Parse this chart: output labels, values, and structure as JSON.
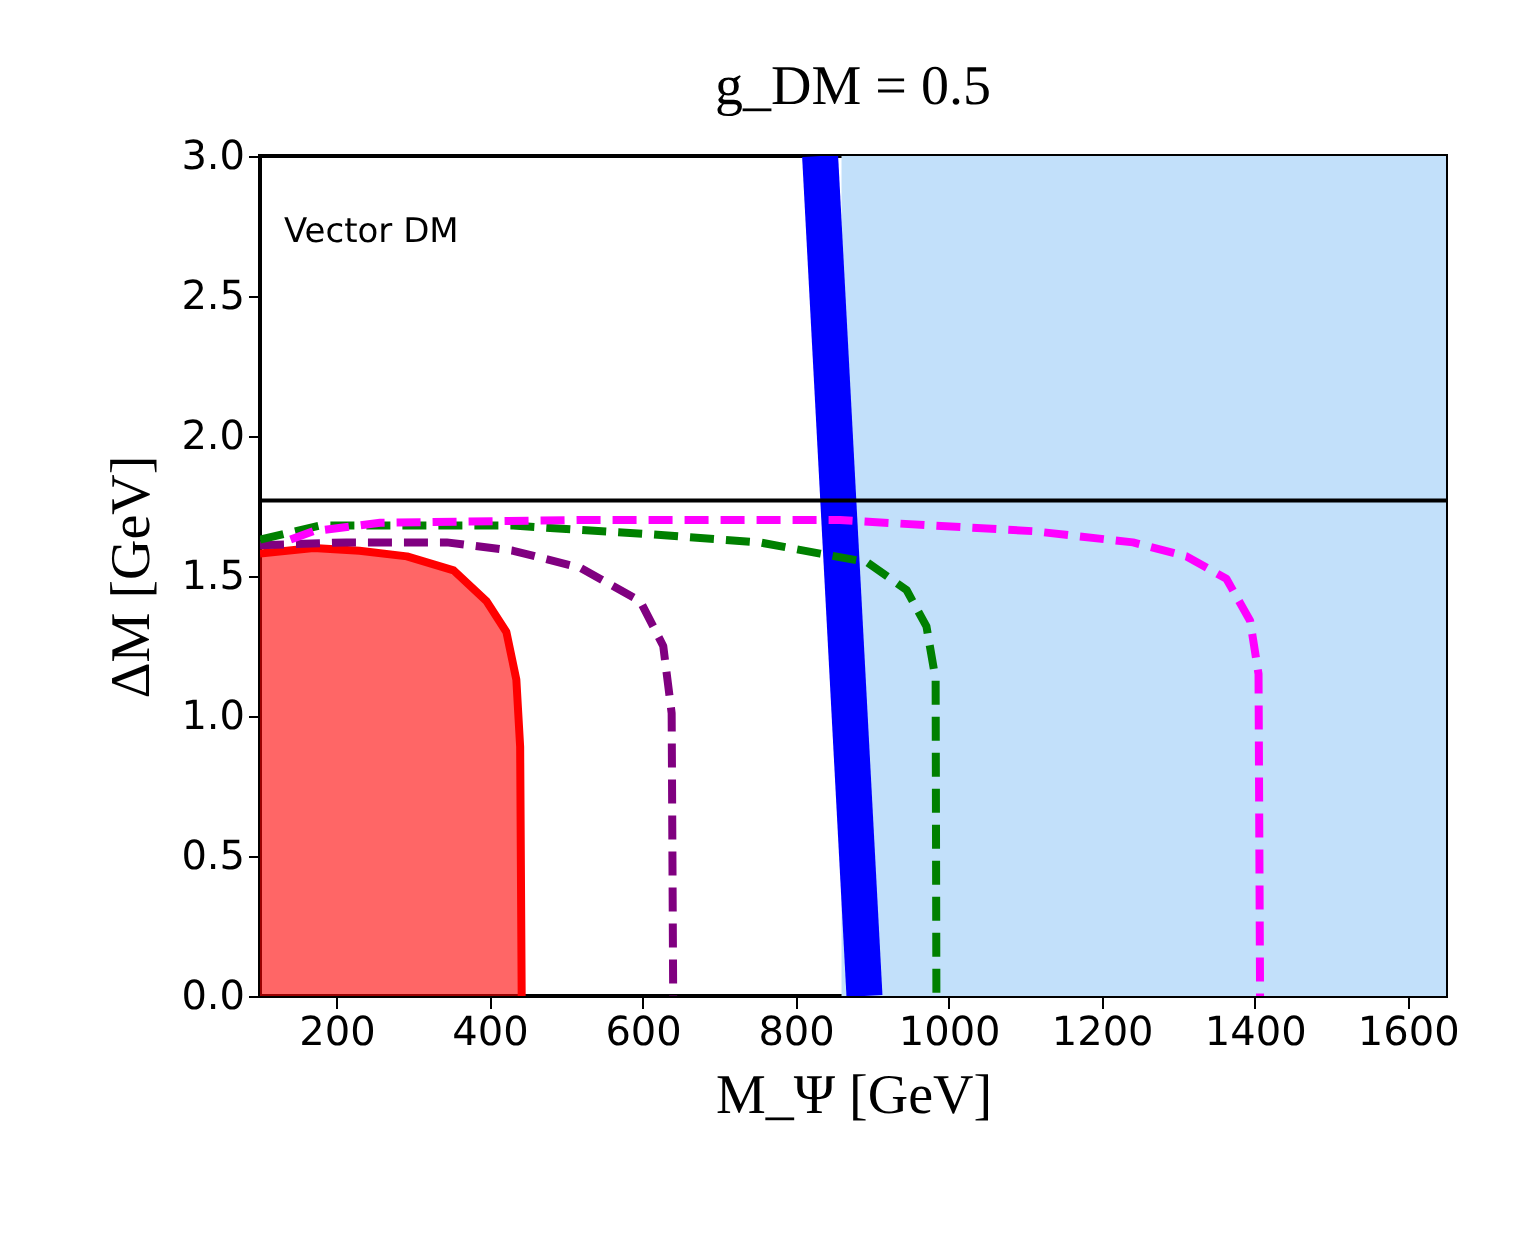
{
  "chart_data": {
    "type": "line",
    "title": "g_DM = 0.5",
    "xlabel": "M_Ψ [GeV]",
    "ylabel": "ΔM [GeV]",
    "annotations": [
      "Vector DM"
    ],
    "xlim": [
      100,
      1650
    ],
    "xticks": [
      200,
      400,
      600,
      800,
      1000,
      1200,
      1400,
      1600
    ],
    "ylim": [
      0,
      3.0
    ],
    "yticks": [
      {
        "value": 0,
        "label": "0.0"
      },
      {
        "value": 0.5,
        "label": "0.5"
      },
      {
        "value": 1.0,
        "label": "1.0"
      },
      {
        "value": 1.5,
        "label": "1.5"
      },
      {
        "value": 2.0,
        "label": "2.0"
      },
      {
        "value": 2.5,
        "label": "2.5"
      },
      {
        "value": 3.0,
        "label": "3.0"
      }
    ],
    "grid": false,
    "bands": [
      {
        "axis": "x",
        "from": 860,
        "to": 1650,
        "color": "#c2e0fa"
      }
    ],
    "ref_lines": [
      {
        "axis": "y",
        "value": 1.77,
        "color": "#000000"
      }
    ],
    "series": [
      {
        "color": "#0000ff",
        "x": [
          832,
          890
        ],
        "values": [
          3.0,
          0.0
        ]
      },
      {
        "type": "area",
        "color": "#ff0000",
        "x": [
          100,
          170,
          230,
          292,
          353,
          396,
          422,
          435,
          440,
          442
        ],
        "values": [
          1.58,
          1.6,
          1.59,
          1.57,
          1.52,
          1.41,
          1.3,
          1.13,
          0.89,
          0.0
        ]
      },
      {
        "line_style": "dashed",
        "color": "#800080",
        "x": [
          100,
          213,
          344,
          431,
          518,
          597,
          627,
          638,
          640
        ],
        "values": [
          1.61,
          1.62,
          1.62,
          1.59,
          1.53,
          1.41,
          1.25,
          1.01,
          0.0
        ]
      },
      {
        "line_style": "dashed",
        "color": "#008000",
        "x": [
          100,
          178,
          431,
          605,
          753,
          832,
          893,
          945,
          971,
          983,
          984
        ],
        "values": [
          1.63,
          1.68,
          1.68,
          1.65,
          1.62,
          1.58,
          1.55,
          1.45,
          1.32,
          1.13,
          0.0
        ]
      },
      {
        "line_style": "dashed",
        "color": "#ff00ff",
        "x": [
          140,
          170,
          257,
          518,
          858,
          980,
          1111,
          1241,
          1311,
          1363,
          1394,
          1405,
          1407
        ],
        "values": [
          1.63,
          1.66,
          1.69,
          1.7,
          1.7,
          1.68,
          1.66,
          1.62,
          1.57,
          1.49,
          1.34,
          1.15,
          0.0
        ]
      }
    ]
  }
}
